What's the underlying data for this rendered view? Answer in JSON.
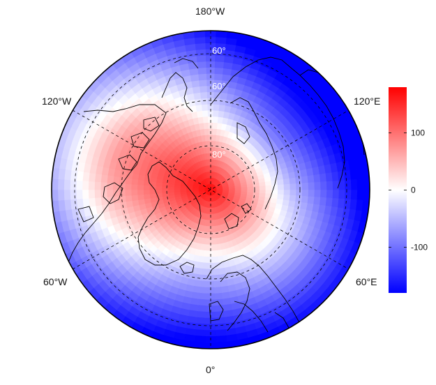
{
  "map": {
    "projection": "north-polar-stereographic",
    "longitude_labels": {
      "top": "180°W",
      "bottom": "0°",
      "upper_left": "120°W",
      "upper_right": "120°E",
      "lower_left": "60°W",
      "lower_right": "60°E"
    },
    "latitude_labels": [
      "60°",
      "60°",
      "80°"
    ],
    "colors": {
      "positive": "#ff0000",
      "neutral": "#ffffff",
      "negative": "#0000ff",
      "coast": "#000000"
    }
  },
  "colorbar": {
    "min": -180,
    "max": 180,
    "ticks": [
      {
        "value": 100,
        "label": "100"
      },
      {
        "value": 0,
        "label": "0"
      },
      {
        "value": -100,
        "label": "-100"
      }
    ]
  }
}
